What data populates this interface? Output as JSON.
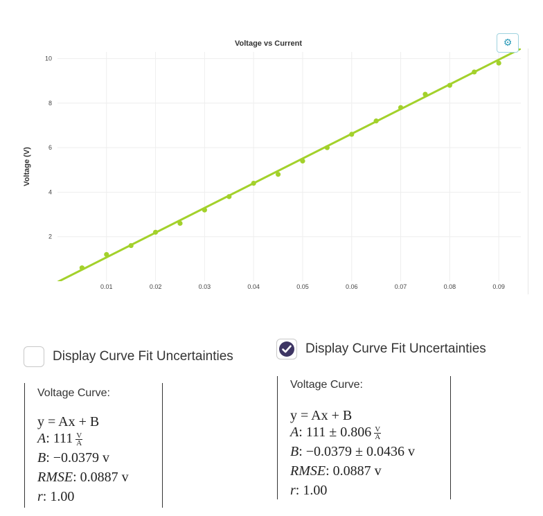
{
  "chart_data": {
    "type": "scatter",
    "title": "Voltage vs Current",
    "xlabel": "",
    "ylabel": "Voltage (V)",
    "xlim": [
      0,
      0.0945
    ],
    "ylim": [
      0,
      10.3
    ],
    "xticks": [
      0.01,
      0.02,
      0.03,
      0.04,
      0.05,
      0.06,
      0.07,
      0.08,
      0.09
    ],
    "xtick_labels": [
      "0.01",
      "0.02",
      "0.03",
      "0.04",
      "0.05",
      "0.06",
      "0.07",
      "0.08",
      "0.09"
    ],
    "yticks": [
      2,
      4,
      6,
      8,
      10
    ],
    "ytick_labels": [
      "2",
      "4",
      "6",
      "8",
      "10"
    ],
    "grid": true,
    "series": [
      {
        "x": [
          0.005,
          0.01,
          0.015,
          0.02,
          0.025,
          0.03,
          0.035,
          0.04,
          0.045,
          0.05,
          0.055,
          0.06,
          0.065,
          0.07,
          0.075,
          0.08,
          0.085,
          0.09
        ],
        "y": [
          0.6,
          1.2,
          1.6,
          2.2,
          2.6,
          3.2,
          3.8,
          4.4,
          4.8,
          5.4,
          6.0,
          6.6,
          7.2,
          7.8,
          8.4,
          8.8,
          9.4,
          9.8
        ]
      }
    ],
    "fit": {
      "slope": 111,
      "intercept": -0.0379
    },
    "color": "#a3d12b"
  },
  "settings_icon": "gear-icon",
  "panels": [
    {
      "checkbox_label": "Display Curve Fit Uncertainties",
      "checked": false,
      "title": "Voltage Curve:",
      "equation": "y = Ax + B",
      "A_value": ": 111",
      "B_value": ": −0.0379 v",
      "rmse_value": ": 0.0887 v",
      "r_value": ": 1.00",
      "unit_num": "V",
      "unit_den": "A"
    },
    {
      "checkbox_label": "Display Curve Fit Uncertainties",
      "checked": true,
      "title": "Voltage Curve:",
      "equation": "y = Ax + B",
      "A_value": ": 111 ± 0.806",
      "B_value": ": −0.0379 ± 0.0436 v",
      "rmse_value": ": 0.0887 v",
      "r_value": ": 1.00",
      "unit_num": "V",
      "unit_den": "A"
    }
  ]
}
